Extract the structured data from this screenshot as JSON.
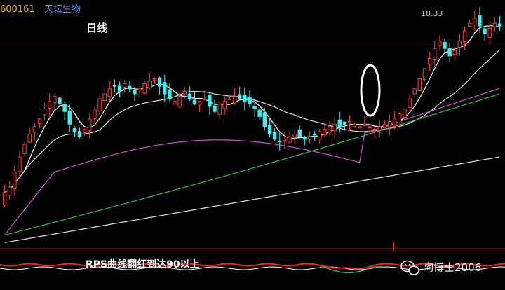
{
  "stock": {
    "code": "600161",
    "name": "天坛生物"
  },
  "chart_data": {
    "type": "candlestick",
    "period_label": "日线",
    "max_label": "18.33",
    "ylim": [
      9.2,
      18.7
    ],
    "colors": {
      "up": "#ff3c3c",
      "down": "#3cf0f0",
      "ma_fast": "#ffffff",
      "ma_mid": "#dcdcdc",
      "ma_60": "#d050d0",
      "ma_120": "#30c040",
      "ma_250": "#e0e0e0",
      "rps": "#ff2020"
    },
    "closes": [
      11.3,
      11.5,
      12.1,
      12.7,
      13.2,
      13.6,
      13.9,
      14.2,
      14.6,
      14.9,
      15.1,
      14.8,
      14.5,
      14.0,
      13.7,
      13.5,
      13.8,
      14.2,
      14.6,
      15.0,
      15.2,
      15.4,
      15.5,
      15.3,
      15.6,
      15.4,
      15.2,
      15.4,
      15.6,
      15.7,
      15.8,
      15.5,
      15.2,
      15.0,
      14.9,
      15.1,
      15.3,
      15.0,
      14.8,
      14.9,
      15.0,
      14.7,
      14.5,
      14.8,
      14.9,
      15.0,
      15.1,
      15.0,
      14.9,
      14.8,
      14.6,
      14.3,
      13.9,
      13.6,
      13.4,
      13.3,
      13.4,
      13.5,
      13.6,
      13.5,
      13.4,
      13.5,
      13.6,
      13.7,
      13.8,
      13.9,
      14.0,
      13.9,
      14.0,
      14.1,
      14.0,
      13.9,
      14.0,
      13.9,
      13.8,
      13.9,
      14.0,
      14.1,
      14.2,
      14.4,
      14.6,
      15.0,
      15.4,
      15.8,
      16.2,
      16.6,
      17.0,
      17.3,
      17.0,
      16.7,
      16.9,
      17.3,
      17.7,
      18.0,
      18.2,
      17.9,
      17.6,
      17.8,
      18.0,
      17.9
    ],
    "rps_annotation": "RPS曲线翻红到达90以上",
    "highlight_marker": "ellipse"
  },
  "watermark": {
    "label": "陶博士2006"
  }
}
